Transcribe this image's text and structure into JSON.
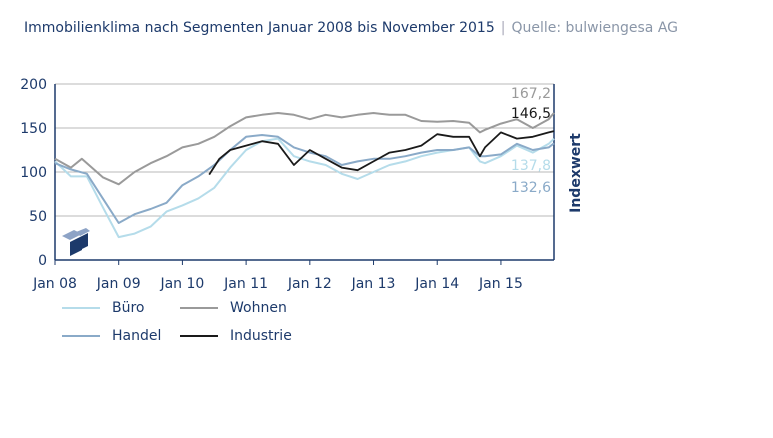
{
  "title": "Immobilienklima nach Segmenten Januar 2008 bis November 2015",
  "source": "Quelle: bulwiengesa AG",
  "chart_data": {
    "type": "line",
    "title": "Immobilienklima nach Segmenten Januar 2008 bis November 2015",
    "ylabel": "Indexwert",
    "xlabel": "",
    "ylim": [
      0,
      200
    ],
    "yticks": [
      "0",
      "50",
      "100",
      "150",
      "200"
    ],
    "xticks": [
      "Jan 08",
      "Jan 09",
      "Jan 10",
      "Jan 11",
      "Jan 12",
      "Jan 13",
      "Jan 14",
      "Jan 15"
    ],
    "xrange": [
      2008.0,
      2015.833
    ],
    "grid": true,
    "legend": "bottom",
    "series": [
      {
        "name": "Büro",
        "color": "#b5dcea",
        "end_label": "137,8",
        "x": [
          2008,
          2008.25,
          2008.5,
          2008.75,
          2009,
          2009.25,
          2009.5,
          2009.75,
          2010,
          2010.25,
          2010.5,
          2010.75,
          2011,
          2011.25,
          2011.5,
          2011.75,
          2012,
          2012.25,
          2012.5,
          2012.75,
          2013,
          2013.25,
          2013.5,
          2013.75,
          2014,
          2014.25,
          2014.5,
          2014.67,
          2014.75,
          2015,
          2015.25,
          2015.5,
          2015.75,
          2015.833
        ],
        "y": [
          112,
          95,
          95,
          60,
          26,
          30,
          38,
          55,
          62,
          70,
          82,
          105,
          125,
          135,
          138,
          118,
          112,
          108,
          98,
          92,
          100,
          108,
          112,
          118,
          122,
          125,
          128,
          112,
          110,
          118,
          130,
          122,
          132,
          137.8
        ]
      },
      {
        "name": "Wohnen",
        "color": "#9a9a9a",
        "end_label": "167,2",
        "x": [
          2008,
          2008.25,
          2008.42,
          2008.75,
          2009,
          2009.25,
          2009.5,
          2009.75,
          2010,
          2010.25,
          2010.5,
          2010.75,
          2011,
          2011.25,
          2011.5,
          2011.75,
          2012,
          2012.25,
          2012.5,
          2012.75,
          2013,
          2013.25,
          2013.5,
          2013.75,
          2014,
          2014.25,
          2014.5,
          2014.67,
          2014.75,
          2015,
          2015.25,
          2015.5,
          2015.75,
          2015.833
        ],
        "y": [
          115,
          105,
          115,
          94,
          86,
          100,
          110,
          118,
          128,
          132,
          140,
          152,
          162,
          165,
          167,
          165,
          160,
          165,
          162,
          165,
          167,
          165,
          165,
          158,
          157,
          158,
          156,
          145,
          148,
          155,
          160,
          150,
          160,
          167.2
        ]
      },
      {
        "name": "Handel",
        "color": "#8aaac8",
        "end_label": "132,6",
        "x": [
          2008,
          2008.25,
          2008.5,
          2008.75,
          2009,
          2009.25,
          2009.5,
          2009.75,
          2010,
          2010.25,
          2010.5,
          2010.75,
          2011,
          2011.25,
          2011.5,
          2011.75,
          2012,
          2012.25,
          2012.5,
          2012.75,
          2013,
          2013.25,
          2013.5,
          2013.75,
          2014,
          2014.25,
          2014.5,
          2014.67,
          2014.75,
          2015,
          2015.25,
          2015.5,
          2015.75,
          2015.833
        ],
        "y": [
          110,
          103,
          98,
          70,
          42,
          52,
          58,
          65,
          85,
          95,
          108,
          125,
          140,
          142,
          140,
          128,
          122,
          118,
          108,
          112,
          115,
          115,
          118,
          122,
          125,
          125,
          128,
          118,
          118,
          120,
          132,
          125,
          128,
          132.6
        ]
      },
      {
        "name": "Industrie",
        "color": "#1a1a1a",
        "end_label": "146,5",
        "x": [
          2010.42,
          2010.58,
          2010.75,
          2011,
          2011.25,
          2011.5,
          2011.75,
          2012,
          2012.25,
          2012.5,
          2012.75,
          2013,
          2013.25,
          2013.5,
          2013.75,
          2014,
          2014.25,
          2014.5,
          2014.67,
          2014.75,
          2015,
          2015.25,
          2015.5,
          2015.75,
          2015.833
        ],
        "y": [
          97,
          115,
          125,
          130,
          135,
          132,
          108,
          125,
          115,
          105,
          102,
          112,
          122,
          125,
          130,
          143,
          140,
          140,
          118,
          128,
          145,
          138,
          140,
          145,
          146.5
        ]
      }
    ]
  }
}
